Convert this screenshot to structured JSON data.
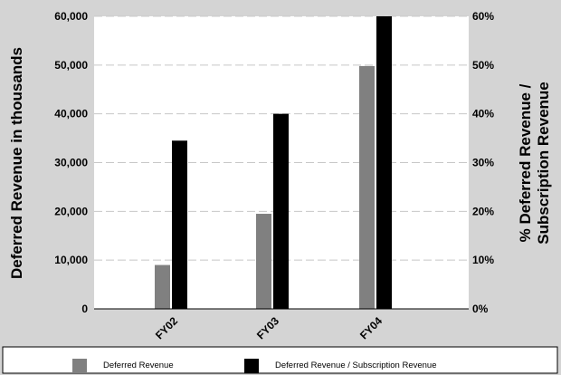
{
  "chart_data": {
    "type": "bar",
    "categories": [
      "FY02",
      "FY03",
      "FY04"
    ],
    "series": [
      {
        "name": "Deferred Revenue",
        "axis": "left",
        "values": [
          9000,
          19500,
          49800
        ],
        "color": "#808080"
      },
      {
        "name": "Deferred Revenue / Subscription Revenue",
        "axis": "right",
        "values": [
          0.345,
          0.4,
          0.6
        ],
        "color": "#000000"
      }
    ],
    "ylabel_left": "Deferred Revenue in thousands",
    "ylabel_right_lines": [
      "% Deferred Revenue /",
      "Subscription Revenue"
    ],
    "ylim_left": [
      0,
      60000
    ],
    "ylim_right": [
      0,
      0.6
    ],
    "yticks_left": [
      "0",
      "10,000",
      "20,000",
      "30,000",
      "40,000",
      "50,000",
      "60,000"
    ],
    "yticks_right": [
      "0%",
      "10%",
      "20%",
      "30%",
      "40%",
      "50%",
      "60%"
    ],
    "grid": true,
    "legend_position": "bottom",
    "plot_background": "#ffffff",
    "page_background": "#d4d4d4"
  }
}
